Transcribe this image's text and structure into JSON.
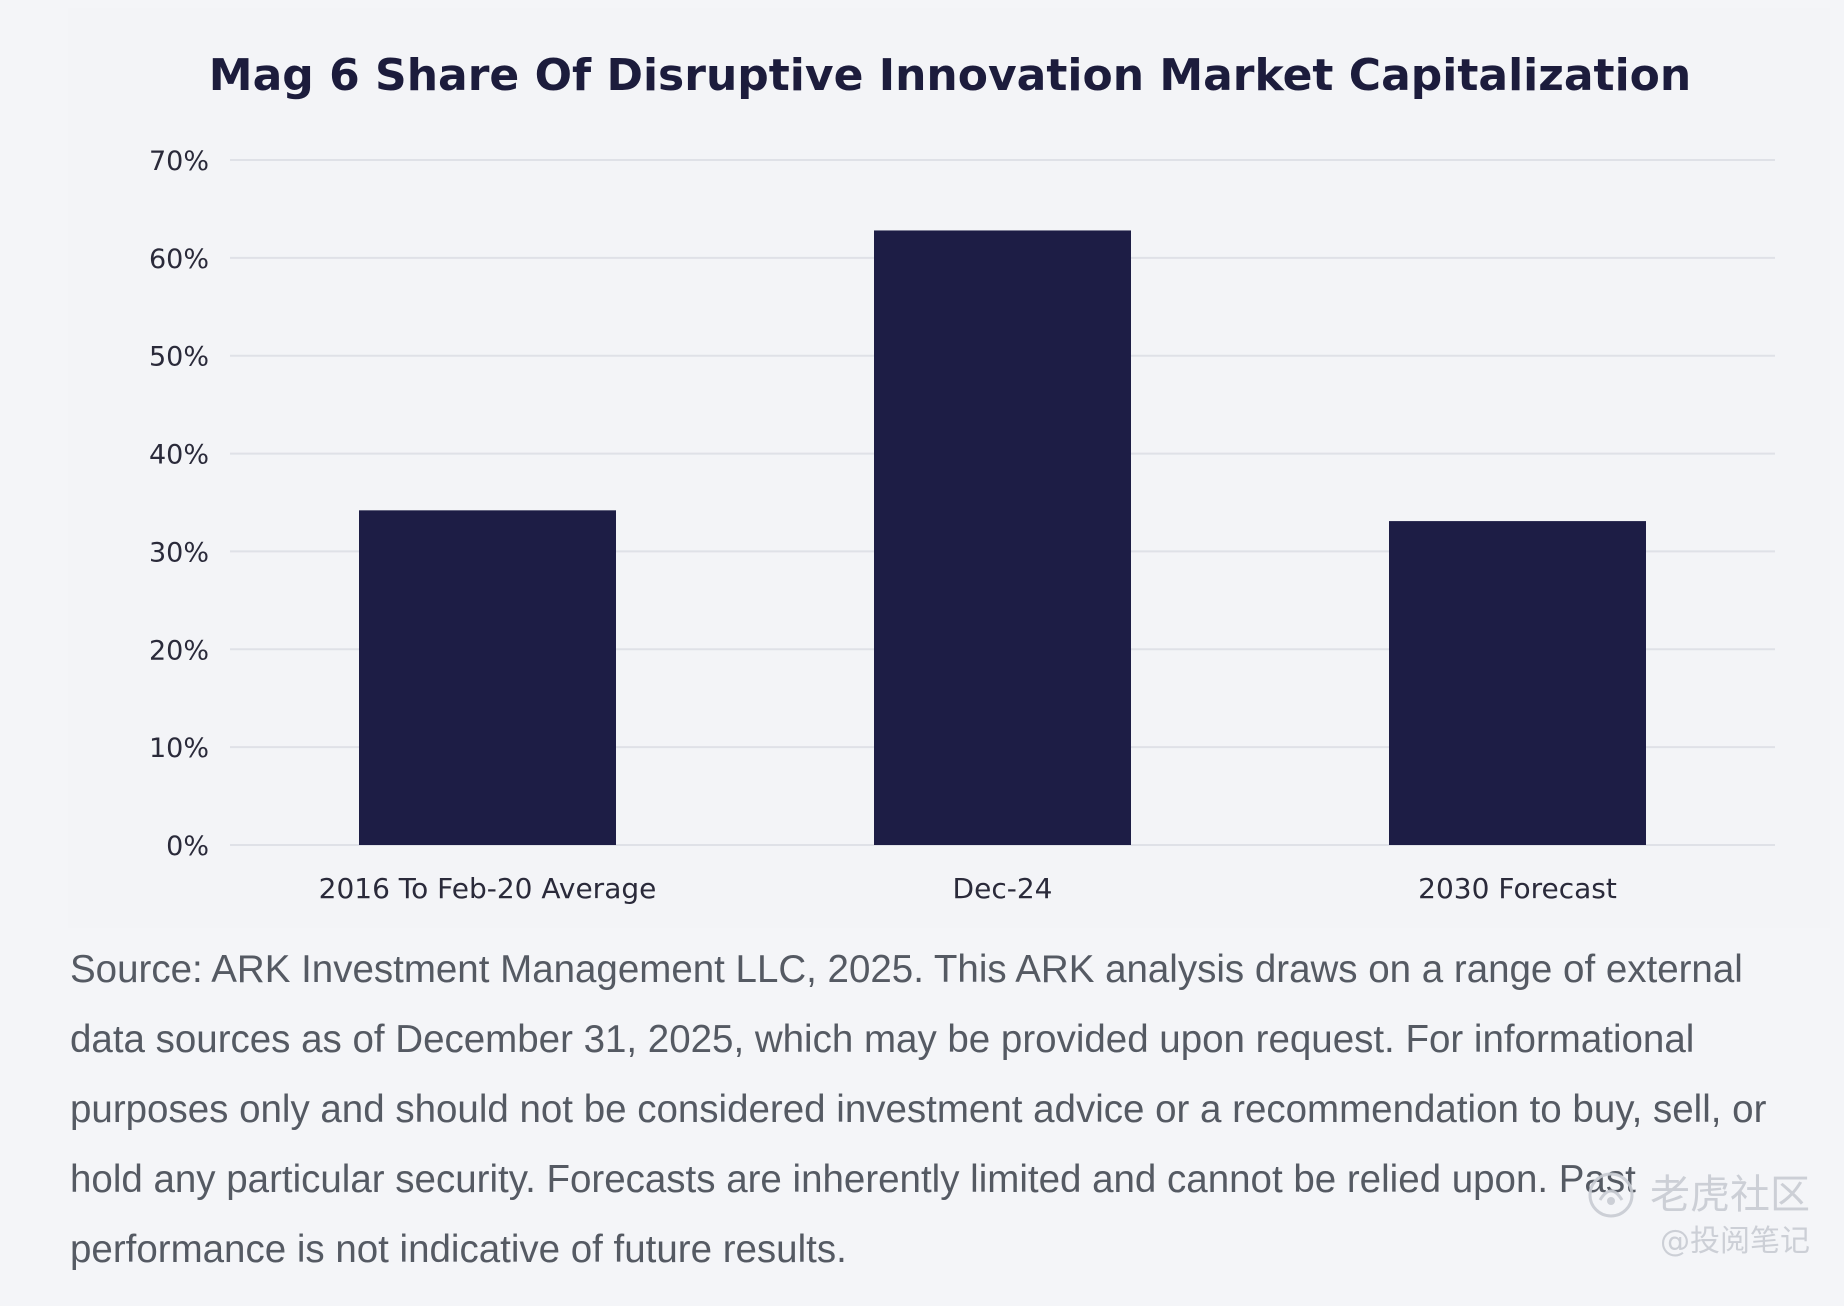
{
  "chart_data": {
    "type": "bar",
    "title": "Mag 6 Share Of Disruptive Innovation Market Capitalization",
    "categories": [
      "2016 To Feb-20 Average",
      "Dec-24",
      "2030 Forecast"
    ],
    "values": [
      34.2,
      62.8,
      33.1
    ],
    "ylim": [
      0,
      70
    ],
    "yticks": [
      0,
      10,
      20,
      30,
      40,
      50,
      60,
      70
    ],
    "ytick_labels": [
      "0%",
      "10%",
      "20%",
      "30%",
      "40%",
      "50%",
      "60%",
      "70%"
    ],
    "xlabel": "",
    "ylabel": "",
    "grid": true,
    "bar_color": "#1d1d45",
    "grid_color": "#dfe1e7"
  },
  "source_note": "Source: ARK Investment Management LLC, 2025. This ARK analysis draws on a range of external data sources as of December 31, 2025, which may be provided upon request. For informational purposes only and should not be considered investment advice or a recommendation to buy, sell, or hold any particular security. Forecasts are inherently limited and cannot be relied upon. Past performance is not indicative of future results.",
  "watermark": {
    "brand": "老虎社区",
    "handle": "@投阅笔记"
  }
}
